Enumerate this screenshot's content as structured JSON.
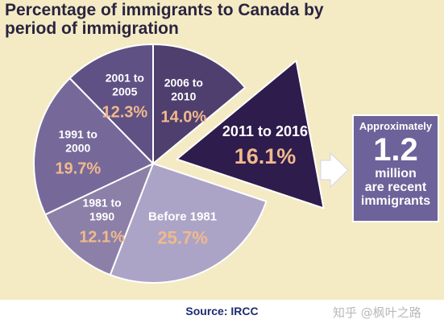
{
  "chart_data": {
    "type": "pie",
    "title": "Percentage of immigrants to Canada by period of immigration",
    "slices": [
      {
        "label": "2006 to 2010",
        "lines": [
          "2006 to",
          "2010"
        ],
        "value_text": "14.0%",
        "value": 14.0,
        "color": "#4e3f6e"
      },
      {
        "label": "2011 to 2016",
        "lines": [
          "2011 to 2016"
        ],
        "value_text": "16.1%",
        "value": 16.1,
        "color": "#2d1c4c"
      },
      {
        "label": "Before 1981",
        "lines": [
          "Before 1981"
        ],
        "value_text": "25.7%",
        "value": 25.7,
        "color": "#aca4c6"
      },
      {
        "label": "1981 to 1990",
        "lines": [
          "1981 to",
          "1990"
        ],
        "value_text": "12.1%",
        "value": 12.1,
        "color": "#8c80a8"
      },
      {
        "label": "1991 to 2000",
        "lines": [
          "1991 to",
          "2000"
        ],
        "value_text": "19.7%",
        "value": 19.7,
        "color": "#76699a"
      },
      {
        "label": "2001 to 2005",
        "lines": [
          "2001 to",
          "2005"
        ],
        "value_text": "12.3%",
        "value": 12.3,
        "color": "#5f5184"
      }
    ],
    "exploded_slice": "2011 to 2016",
    "colors": {
      "background": "#f4ebc4",
      "slice_border": "#ffffff",
      "value_text": "#f1b98c",
      "callout": "#6d6299"
    }
  },
  "callout": {
    "top": "Approximately",
    "big": "1.2",
    "mid": "million",
    "bottom": "are recent immigrants"
  },
  "source": "Source: IRCC",
  "watermark": "知乎 @枫叶之路"
}
